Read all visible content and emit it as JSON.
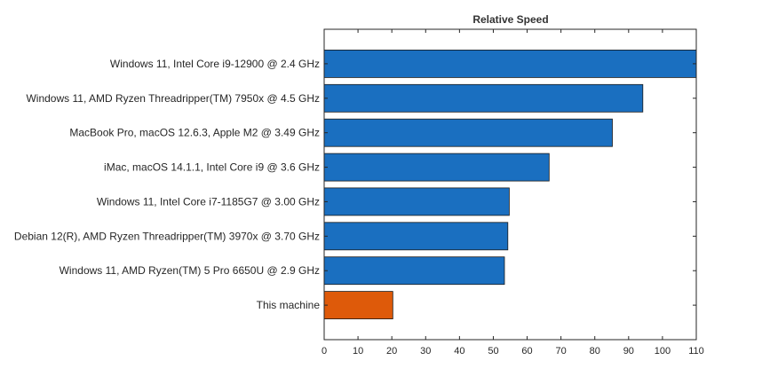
{
  "chart_data": {
    "type": "bar",
    "orientation": "horizontal",
    "title": "Relative Speed",
    "xlabel": "",
    "ylabel": "",
    "xlim": [
      0,
      110
    ],
    "xticks": [
      0,
      10,
      20,
      30,
      40,
      50,
      60,
      70,
      80,
      90,
      100,
      110
    ],
    "categories": [
      "Windows 11, Intel Core i9-12900 @ 2.4 GHz",
      "Windows 11, AMD Ryzen Threadripper(TM) 7950x @ 4.5 GHz",
      "MacBook Pro, macOS 12.6.3, Apple M2 @ 3.49 GHz",
      "iMac, macOS 14.1.1, Intel Core i9 @ 3.6 GHz",
      "Windows 11, Intel Core i7-1185G7 @ 3.00 GHz",
      "Debian 12(R), AMD Ryzen Threadripper(TM) 3970x @ 3.70 GHz",
      "Windows 11, AMD Ryzen(TM) 5 Pro 6650U @ 2.9 GHz",
      "This machine"
    ],
    "values": [
      110,
      94.2,
      85.2,
      66.5,
      54.7,
      54.3,
      53.3,
      20.3
    ],
    "colors": [
      "#1a6fc0",
      "#1a6fc0",
      "#1a6fc0",
      "#1a6fc0",
      "#1a6fc0",
      "#1a6fc0",
      "#1a6fc0",
      "#de5a0a"
    ],
    "grid": false,
    "legend": "none"
  }
}
